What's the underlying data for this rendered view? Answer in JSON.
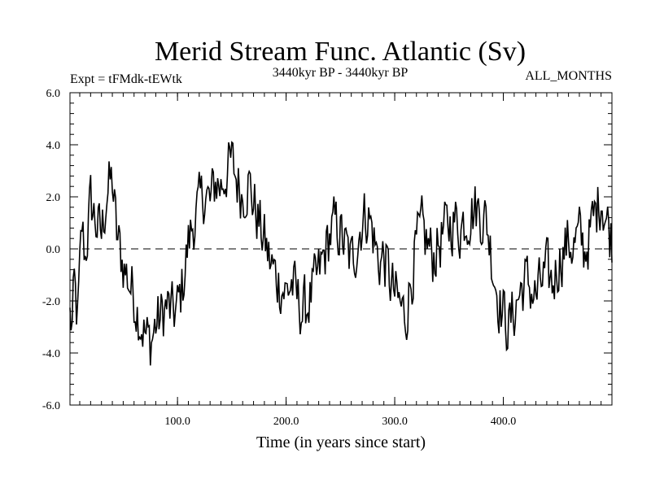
{
  "chart_data": {
    "type": "line",
    "title": "Merid Stream Func. Atlantic (Sv)",
    "subtitle_left": "Expt = tFMdk-tEWtk",
    "subtitle_center": "3440kyr BP - 3440kyr BP",
    "subtitle_right": "ALL_MONTHS",
    "xlabel": "Time (in years since start)",
    "ylabel": "",
    "xlim": [
      1,
      500
    ],
    "ylim": [
      -6,
      6
    ],
    "xticks": [
      100,
      200,
      300,
      400
    ],
    "xtick_labels": [
      "100.0",
      "200.0",
      "300.0",
      "400.0"
    ],
    "yticks": [
      6,
      4,
      2,
      0,
      -2,
      -4,
      -6
    ],
    "ytick_labels": [
      "6.0",
      "4.0",
      "2.0",
      "0.0",
      "-2.0",
      "-4.0",
      "-6.0"
    ],
    "zero_line": {
      "y": 0,
      "style": "dashed"
    },
    "series": [
      {
        "name": "Merid Stream Func. Atlantic",
        "anchors": [
          [
            1,
            -2.6
          ],
          [
            3,
            -3.0
          ],
          [
            5,
            -1.5
          ],
          [
            8,
            -2.8
          ],
          [
            12,
            0.8
          ],
          [
            15,
            -0.3
          ],
          [
            20,
            1.8
          ],
          [
            25,
            1.0
          ],
          [
            30,
            0.5
          ],
          [
            35,
            2.2
          ],
          [
            40,
            2.6
          ],
          [
            44,
            0.5
          ],
          [
            50,
            -0.6
          ],
          [
            55,
            -1.2
          ],
          [
            60,
            -1.8
          ],
          [
            65,
            -2.6
          ],
          [
            70,
            -3.3
          ],
          [
            75,
            -3.6
          ],
          [
            80,
            -2.9
          ],
          [
            85,
            -2.6
          ],
          [
            90,
            -2.2
          ],
          [
            95,
            -2.5
          ],
          [
            100,
            -2.3
          ],
          [
            105,
            -1.3
          ],
          [
            110,
            0.2
          ],
          [
            115,
            1.1
          ],
          [
            120,
            1.6
          ],
          [
            125,
            2.2
          ],
          [
            130,
            1.7
          ],
          [
            135,
            2.6
          ],
          [
            140,
            2.4
          ],
          [
            145,
            3.0
          ],
          [
            150,
            3.3
          ],
          [
            155,
            2.6
          ],
          [
            160,
            2.1
          ],
          [
            165,
            2.6
          ],
          [
            170,
            1.8
          ],
          [
            175,
            1.0
          ],
          [
            180,
            0.3
          ],
          [
            185,
            -0.5
          ],
          [
            190,
            -1.0
          ],
          [
            195,
            -1.4
          ],
          [
            200,
            -1.7
          ],
          [
            205,
            -1.3
          ],
          [
            210,
            -1.9
          ],
          [
            215,
            -2.4
          ],
          [
            220,
            -2.1
          ],
          [
            225,
            -1.6
          ],
          [
            230,
            -1.0
          ],
          [
            235,
            -0.3
          ],
          [
            240,
            0.5
          ],
          [
            245,
            0.9
          ],
          [
            250,
            0.6
          ],
          [
            255,
            0.0
          ],
          [
            260,
            -0.5
          ],
          [
            265,
            0.2
          ],
          [
            270,
            1.1
          ],
          [
            275,
            1.4
          ],
          [
            280,
            0.6
          ],
          [
            285,
            -0.5
          ],
          [
            290,
            -0.3
          ],
          [
            295,
            -1.1
          ],
          [
            300,
            -1.8
          ],
          [
            305,
            -2.2
          ],
          [
            310,
            -2.6
          ],
          [
            315,
            -1.2
          ],
          [
            320,
            0.1
          ],
          [
            325,
            0.7
          ],
          [
            330,
            0.2
          ],
          [
            335,
            -0.3
          ],
          [
            340,
            0.1
          ],
          [
            345,
            0.6
          ],
          [
            350,
            0.9
          ],
          [
            355,
            1.1
          ],
          [
            360,
            0.8
          ],
          [
            365,
            1.2
          ],
          [
            370,
            1.4
          ],
          [
            375,
            1.6
          ],
          [
            380,
            1.3
          ],
          [
            385,
            1.0
          ],
          [
            390,
            -0.5
          ],
          [
            395,
            -1.8
          ],
          [
            400,
            -2.5
          ],
          [
            405,
            -3.0
          ],
          [
            410,
            -2.4
          ],
          [
            415,
            -1.7
          ],
          [
            420,
            -1.2
          ],
          [
            425,
            -1.5
          ],
          [
            430,
            -1.9
          ],
          [
            435,
            -1.3
          ],
          [
            440,
            -0.9
          ],
          [
            445,
            -1.4
          ],
          [
            450,
            -0.6
          ],
          [
            455,
            -0.1
          ],
          [
            460,
            0.3
          ],
          [
            465,
            0.1
          ],
          [
            470,
            0.5
          ],
          [
            475,
            -0.1
          ],
          [
            480,
            0.6
          ],
          [
            485,
            1.4
          ],
          [
            490,
            2.1
          ],
          [
            495,
            1.1
          ],
          [
            500,
            0.4
          ]
        ]
      }
    ]
  }
}
